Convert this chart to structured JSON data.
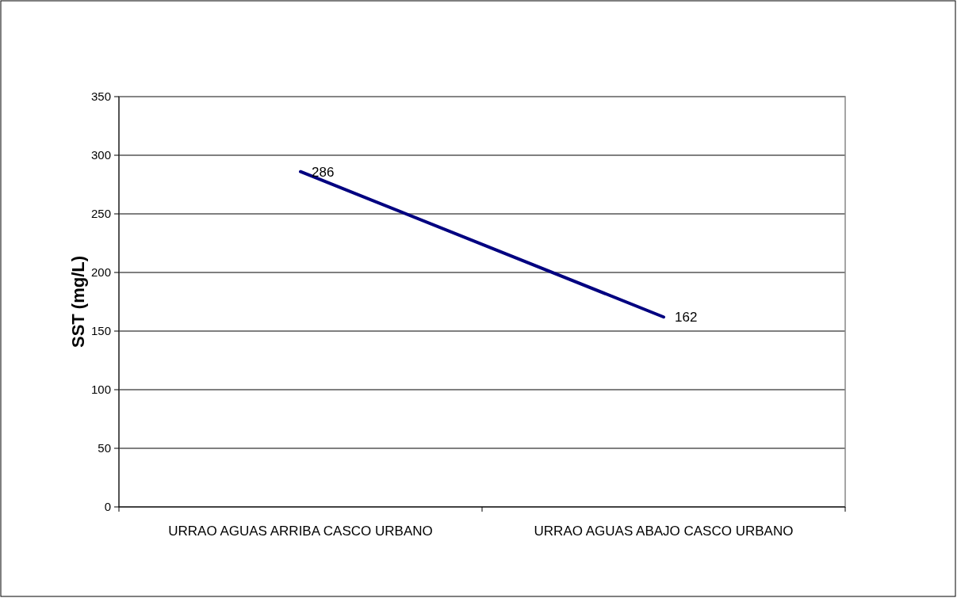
{
  "chart_data": {
    "type": "line",
    "ylabel": "SST (mg/L)",
    "categories": [
      "URRAO AGUAS ARRIBA CASCO URBANO",
      "URRAO AGUAS ABAJO CASCO URBANO"
    ],
    "series": [
      {
        "color": "#000080",
        "values": [
          286,
          162
        ]
      }
    ],
    "ylim": [
      0,
      350
    ],
    "yticks": [
      0,
      50,
      100,
      150,
      200,
      250,
      300,
      350
    ],
    "grid": "y",
    "data_labels": true,
    "marker": "none",
    "line_style": "solid"
  }
}
